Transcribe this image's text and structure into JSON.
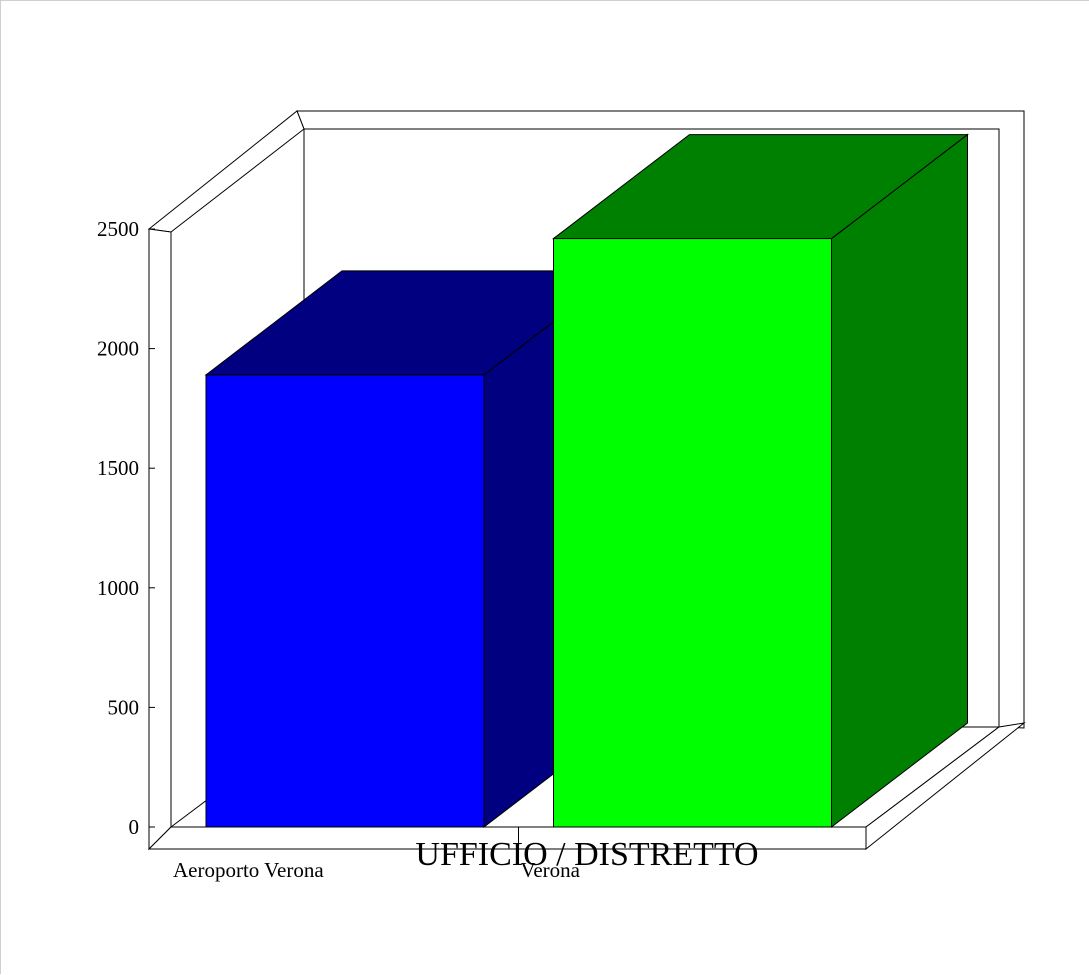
{
  "chart_data": {
    "type": "bar",
    "style": "3d",
    "title": "",
    "xlabel": "UFFICIO / DISTRETTO",
    "ylabel": "",
    "categories": [
      "Aeroporto Verona",
      "Verona"
    ],
    "values": [
      1890,
      2460
    ],
    "ylim": [
      0,
      2500
    ],
    "yticks": [
      "0",
      "500",
      "1000",
      "1500",
      "2000",
      "2500"
    ],
    "grid": false,
    "legend": "none",
    "colors": {
      "bars": [
        {
          "front": "#0000ff",
          "top": "#000080",
          "side": "#000080"
        },
        {
          "front": "#00ff00",
          "top": "#008000",
          "side": "#008000"
        }
      ],
      "frame": "#000000",
      "background": "#ffffff"
    }
  }
}
